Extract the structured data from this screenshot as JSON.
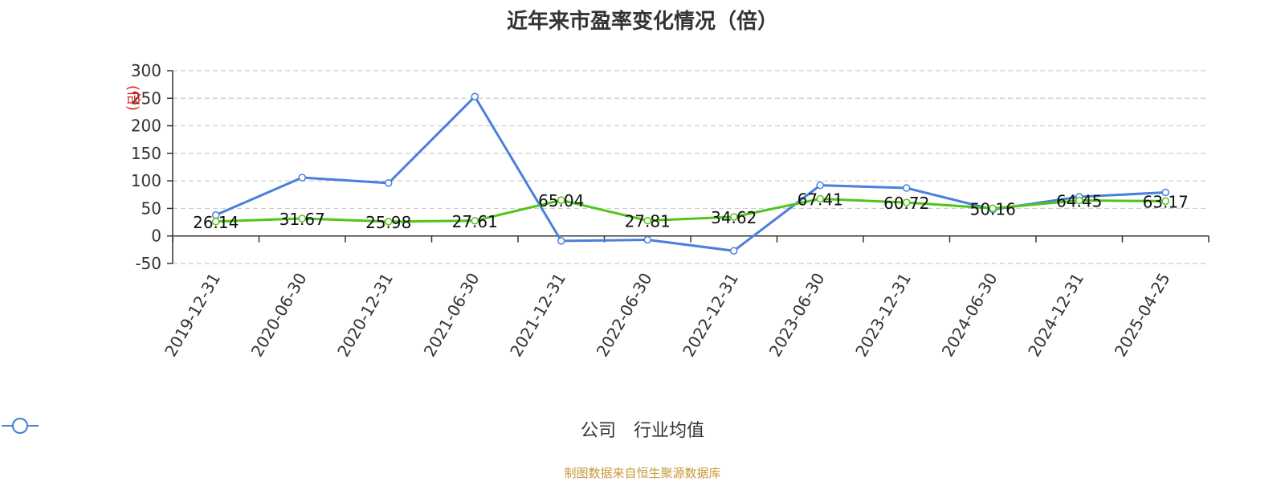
{
  "title": "近年来市盈率变化情况（倍）",
  "source": "制图数据来自恒生聚源数据库",
  "chart_data": {
    "type": "line",
    "title": "近年来市盈率变化情况（倍）",
    "ylabel": "(倍)",
    "ylim": [
      -50,
      300
    ],
    "yticks": [
      300,
      250,
      200,
      150,
      100,
      50,
      0,
      -50
    ],
    "grid": true,
    "legend_position": "bottom",
    "categories": [
      "2019-12-31",
      "2020-06-30",
      "2020-12-31",
      "2021-06-30",
      "2021-12-31",
      "2022-06-30",
      "2022-12-31",
      "2023-06-30",
      "2023-12-31",
      "2024-06-30",
      "2024-12-31",
      "2025-04-25"
    ],
    "series": [
      {
        "name": "公司",
        "color": "#52c41a",
        "labeled": true,
        "labels": [
          "26.14",
          "31.67",
          "25.98",
          "27.61",
          "65.04",
          "27.81",
          "34.62",
          "67.41",
          "60.72",
          "50.16",
          "64.45",
          "63.17"
        ],
        "values": [
          26.14,
          31.67,
          25.98,
          27.61,
          65.04,
          27.81,
          34.62,
          67.41,
          60.72,
          50.16,
          64.45,
          63.17
        ]
      },
      {
        "name": "行业均值",
        "color": "#4a7fdc",
        "labeled": false,
        "values": [
          38,
          106,
          96,
          253,
          -9,
          -7,
          -27,
          92,
          87,
          48,
          71,
          79
        ]
      }
    ]
  }
}
